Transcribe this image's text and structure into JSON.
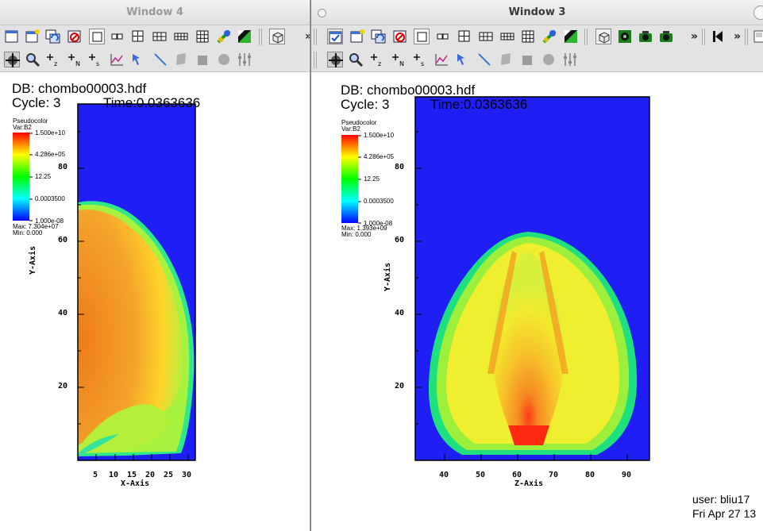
{
  "windows": [
    {
      "title": "Window 4",
      "db_label": "DB: chombo00003.hdf",
      "cycle_label": "Cycle: 3",
      "time_label": "Time:0.0363636",
      "legend": {
        "plot_type": "Pseudocolor",
        "var_label": "Var:B2",
        "ticks": [
          "1.500e+10",
          "4.286e+05",
          "12.25",
          "0.0003500",
          "1.000e-08"
        ],
        "max_label": "Max: 7.304e+07",
        "min_label": "Min: 0.000"
      },
      "plot": {
        "xlabel": "X-Axis",
        "ylabel": "Y-Axis",
        "xticks": [
          "5",
          "10",
          "15",
          "20",
          "25",
          "30"
        ],
        "yticks": [
          "20",
          "40",
          "60",
          "80"
        ]
      }
    },
    {
      "title": "Window 3",
      "db_label": "DB: chombo00003.hdf",
      "cycle_label": "Cycle: 3",
      "time_label": "Time:0.0363636",
      "legend": {
        "plot_type": "Pseudocolor",
        "var_label": "Var:B2",
        "ticks": [
          "1.500e+10",
          "4.286e+05",
          "12.25",
          "0.0003500",
          "1.000e-08"
        ],
        "max_label": "Max: 1.393e+09",
        "min_label": "Min: 0.000"
      },
      "plot": {
        "xlabel": "Z-Axis",
        "ylabel": "Y-Axis",
        "xticks": [
          "40",
          "50",
          "60",
          "70",
          "80",
          "90"
        ],
        "yticks": [
          "20",
          "40",
          "60",
          "80"
        ]
      },
      "user_label": "user: bliu17",
      "date_label": "Fri Apr 27 13"
    }
  ],
  "toolbar": {
    "more_glyph": "»",
    "icons_row1": [
      "new-window-icon",
      "clear-window-icon",
      "copy-window-icon",
      "delete-window-icon",
      "layout-1x1-icon",
      "layout-1x2-icon",
      "layout-2x2-icon",
      "layout-2x3-icon",
      "layout-2x4-icon",
      "layout-3x3-icon",
      "lock-view-icon",
      "invert-background-icon",
      "3d-view-icon"
    ],
    "icons_row2": [
      "navigate-icon",
      "zoom-icon",
      "zone-pick-icon",
      "node-pick-icon",
      "spreadsheet-pick-icon",
      "lineout-icon",
      "point-tool-icon",
      "line-tool-icon",
      "plane-tool-icon",
      "box-tool-icon",
      "sphere-tool-icon",
      "axis-restriction-icon"
    ]
  },
  "colors": {
    "blue": "#1e1ef5",
    "title_inactive": "#9a9a9a",
    "title_active": "#3a3a3a"
  }
}
